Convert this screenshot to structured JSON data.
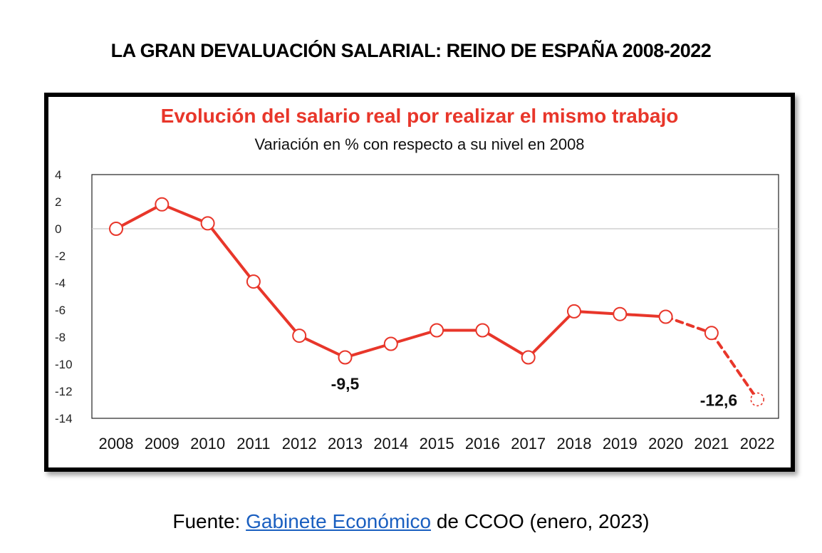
{
  "headline": "LA GRAN DEVALUACIÓN SALARIAL: REINO DE ESPAÑA 2008-2022",
  "source": {
    "prefix": "Fuente:",
    "link_text": "Gabinete Económico",
    "suffix": "de CCOO (enero, 2023)"
  },
  "chart_data": {
    "type": "line",
    "title": "Evolución del salario real por realizar el mismo trabajo",
    "subtitle": "Variación en % con respecto a su nivel en 2008",
    "categories": [
      "2008",
      "2009",
      "2010",
      "2011",
      "2012",
      "2013",
      "2014",
      "2015",
      "2016",
      "2017",
      "2018",
      "2019",
      "2020",
      "2021",
      "2022"
    ],
    "series": [
      {
        "name": "Salario real",
        "values": [
          0,
          1.8,
          0.4,
          -3.9,
          -7.9,
          -9.5,
          -8.5,
          -7.5,
          -7.5,
          -9.5,
          -6.1,
          -6.3,
          -6.5,
          -7.7,
          -12.6
        ],
        "estimated_from_index": 13
      }
    ],
    "ylim": [
      -14,
      4
    ],
    "yticks": [
      "4",
      "2",
      "0",
      "-2",
      "-4",
      "-6",
      "-8",
      "-10",
      "-12",
      "-14"
    ],
    "annotations": [
      {
        "label": "-9,5",
        "category": "2013"
      },
      {
        "label": "-12,6",
        "category": "2022"
      }
    ],
    "colors": {
      "line": "#e8362a",
      "title": "#e8362a",
      "zero_line": "#c8c8c8"
    }
  }
}
